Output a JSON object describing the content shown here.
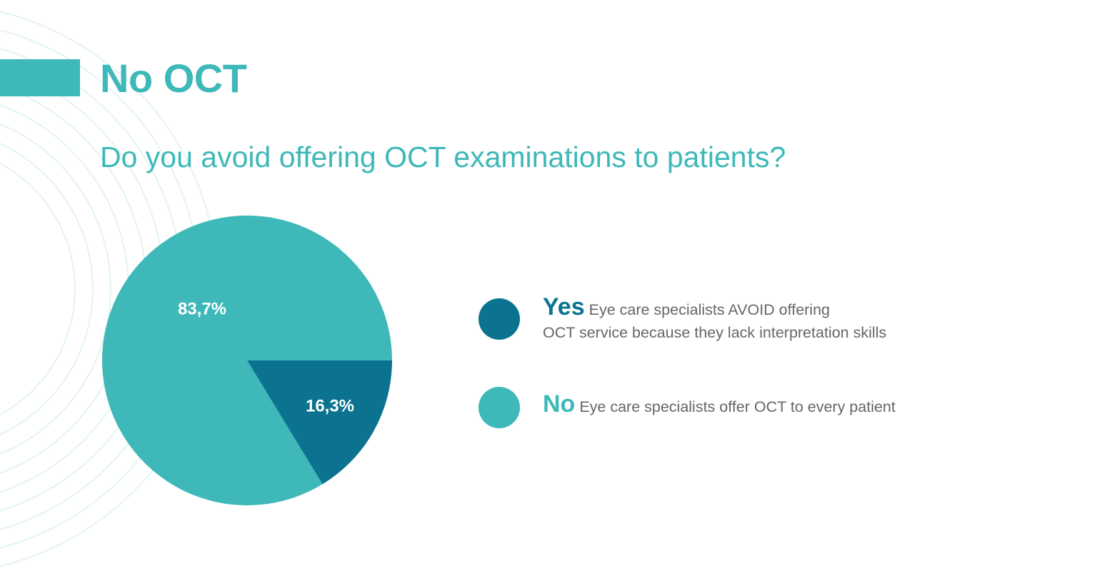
{
  "header": {
    "title": "No OCT"
  },
  "colors": {
    "accent": "#3eb8b8",
    "yes": "#0b7390",
    "no": "#3eb8b8",
    "ring": "#e2f3f3",
    "label_text": "#ffffff",
    "legend_text": "#666666"
  },
  "chart_data": {
    "type": "pie",
    "title": "Do you avoid offering OCT examinations to patients?",
    "slices": [
      {
        "name": "Yes",
        "value": 16.3,
        "label": "16,3%",
        "color": "#0b7390"
      },
      {
        "name": "No",
        "value": 83.7,
        "label": "83,7%",
        "color": "#3eb8b8"
      }
    ]
  },
  "legend": {
    "items": [
      {
        "key": "Yes",
        "line1": "Eye care specialists AVOID offering",
        "line2": "OCT service because they  lack interpretation skills",
        "color": "#0b7390"
      },
      {
        "key": "No",
        "line1": "Eye care specialists offer OCT to every patient",
        "line2": "",
        "color": "#3eb8b8"
      }
    ]
  }
}
